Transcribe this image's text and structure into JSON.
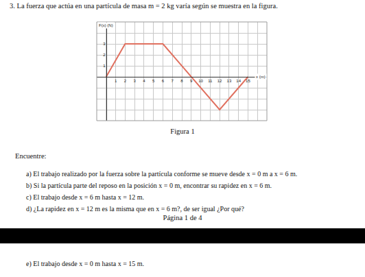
{
  "document": {
    "problem": {
      "number": "3.",
      "statement": "La fuerza que actúa en una partícula de masa m = 2 kg varía según se muestra en la figura."
    },
    "figure_caption": "Figura 1",
    "prompt": "Encuentre:",
    "items": [
      {
        "label": "a)",
        "text": "El trabajo realizado por la fuerza sobre la partícula conforme se mueve desde x = 0 m a x = 6 m."
      },
      {
        "label": "b)",
        "text": "Si la partícula parte del reposo en la posición x = 0 m, encontrar su rapidez en x = 6 m."
      },
      {
        "label": "c)",
        "text": "El trabajo desde x = 6 m hasta x = 12 m."
      },
      {
        "label": "d)",
        "text": "¿La rapidez en x = 12 m es la misma que en x = 6 m?, de ser igual ¿Por qué?"
      }
    ],
    "footer": "Página 1 de 4",
    "next_page_items": [
      {
        "label": "e)",
        "text": "El trabajo desde x = 0 m hasta x = 15 m."
      }
    ]
  },
  "chart_data": {
    "type": "line",
    "x_label": "x (m)",
    "y_label": "F(x) (N)",
    "x": [
      0,
      2,
      6,
      9,
      12,
      15
    ],
    "values": [
      0,
      3,
      3,
      0,
      -3,
      0
    ],
    "color": "#e0705f",
    "xlim": [
      -1,
      17
    ],
    "ylim": [
      -4,
      5
    ],
    "xticks": [
      1,
      2,
      3,
      4,
      5,
      6,
      7,
      8,
      9,
      10,
      11,
      12,
      13,
      14,
      15
    ],
    "yticks": [
      1,
      2,
      3
    ],
    "grid": true
  }
}
